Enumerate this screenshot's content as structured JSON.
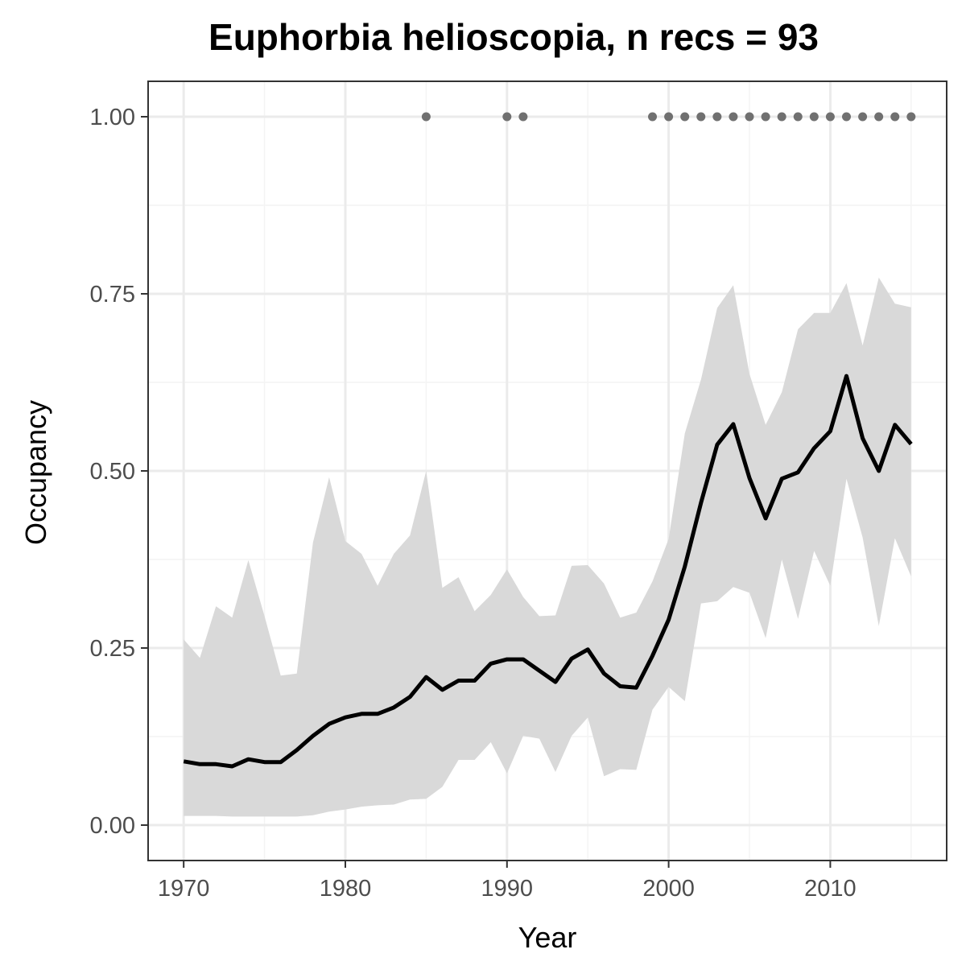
{
  "chart_data": {
    "type": "line",
    "title": "Euphorbia helioscopia, n recs = 93",
    "xlabel": "Year",
    "ylabel": "Occupancy",
    "xlim": [
      1967.8,
      2017.2
    ],
    "ylim": [
      -0.05,
      1.05
    ],
    "x_ticks": [
      1970,
      1980,
      1990,
      2000,
      2010
    ],
    "x_tick_labels": [
      "1970",
      "1980",
      "1990",
      "2000",
      "2010"
    ],
    "y_ticks": [
      0,
      0.25,
      0.5,
      0.75,
      1.0
    ],
    "y_tick_labels": [
      "0.00",
      "0.25",
      "0.50",
      "0.75",
      "1.00"
    ],
    "grid": true,
    "legend": "none",
    "colors": {
      "line": "#000000",
      "ribbon": "#d9d9d9",
      "points": "#707070",
      "grid_major": "#ebebeb",
      "grid_minor": "#f4f4f4",
      "panel_border": "#333333"
    },
    "series": [
      {
        "type": "line",
        "x": [
          1970,
          1971,
          1972,
          1973,
          1974,
          1975,
          1976,
          1977,
          1978,
          1979,
          1980,
          1981,
          1982,
          1983,
          1984,
          1985,
          1986,
          1987,
          1988,
          1989,
          1990,
          1991,
          1992,
          1993,
          1994,
          1995,
          1996,
          1997,
          1998,
          1999,
          2000,
          2001,
          2002,
          2003,
          2004,
          2005,
          2006,
          2007,
          2008,
          2009,
          2010,
          2011,
          2012,
          2013,
          2014,
          2015
        ],
        "y": [
          0.09,
          0.086,
          0.086,
          0.083,
          0.093,
          0.089,
          0.089,
          0.106,
          0.126,
          0.143,
          0.152,
          0.157,
          0.157,
          0.166,
          0.181,
          0.209,
          0.191,
          0.204,
          0.204,
          0.228,
          0.234,
          0.234,
          0.218,
          0.202,
          0.235,
          0.248,
          0.214,
          0.196,
          0.194,
          0.239,
          0.29,
          0.365,
          0.455,
          0.537,
          0.566,
          0.49,
          0.433,
          0.489,
          0.498,
          0.532,
          0.556,
          0.634,
          0.546,
          0.5,
          0.565,
          0.538
        ]
      },
      {
        "type": "ribbon",
        "x": [
          1970,
          1971,
          1972,
          1973,
          1974,
          1975,
          1976,
          1977,
          1978,
          1979,
          1980,
          1981,
          1982,
          1983,
          1984,
          1985,
          1986,
          1987,
          1988,
          1989,
          1990,
          1991,
          1992,
          1993,
          1994,
          1995,
          1996,
          1997,
          1998,
          1999,
          2000,
          2001,
          2002,
          2003,
          2004,
          2005,
          2006,
          2007,
          2008,
          2009,
          2010,
          2011,
          2012,
          2013,
          2014,
          2015
        ],
        "lower": [
          0.013,
          0.013,
          0.013,
          0.012,
          0.012,
          0.012,
          0.012,
          0.012,
          0.014,
          0.019,
          0.022,
          0.026,
          0.028,
          0.029,
          0.036,
          0.037,
          0.054,
          0.092,
          0.092,
          0.117,
          0.073,
          0.126,
          0.122,
          0.075,
          0.126,
          0.152,
          0.069,
          0.079,
          0.078,
          0.163,
          0.195,
          0.175,
          0.313,
          0.316,
          0.336,
          0.328,
          0.264,
          0.375,
          0.291,
          0.387,
          0.338,
          0.489,
          0.406,
          0.281,
          0.405,
          0.351
        ],
        "upper": [
          0.262,
          0.236,
          0.309,
          0.293,
          0.374,
          0.295,
          0.211,
          0.214,
          0.399,
          0.491,
          0.401,
          0.383,
          0.338,
          0.383,
          0.409,
          0.5,
          0.335,
          0.35,
          0.302,
          0.325,
          0.361,
          0.322,
          0.295,
          0.296,
          0.366,
          0.367,
          0.341,
          0.293,
          0.3,
          0.344,
          0.404,
          0.553,
          0.629,
          0.73,
          0.762,
          0.637,
          0.565,
          0.611,
          0.7,
          0.723,
          0.723,
          0.765,
          0.677,
          0.773,
          0.736,
          0.731
        ]
      },
      {
        "type": "scatter",
        "x": [
          1985,
          1990,
          1991,
          1999,
          2000,
          2001,
          2002,
          2003,
          2004,
          2005,
          2006,
          2007,
          2008,
          2009,
          2010,
          2011,
          2012,
          2013,
          2014,
          2015
        ],
        "y": [
          1,
          1,
          1,
          1,
          1,
          1,
          1,
          1,
          1,
          1,
          1,
          1,
          1,
          1,
          1,
          1,
          1,
          1,
          1,
          1
        ]
      }
    ]
  }
}
